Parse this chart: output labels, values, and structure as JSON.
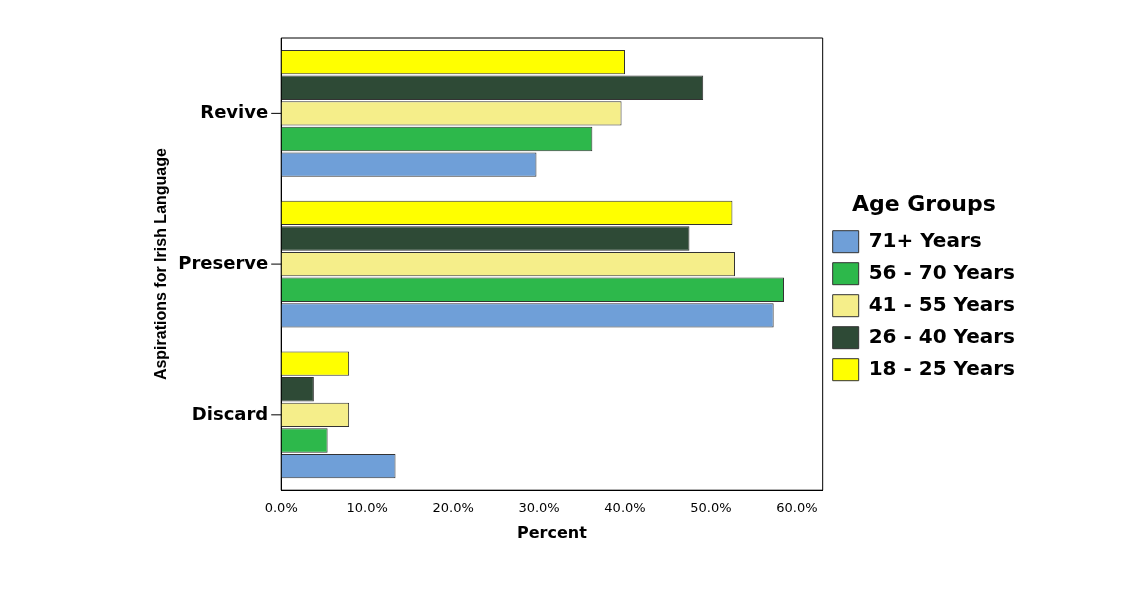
{
  "chart_data": {
    "type": "bar",
    "orientation": "horizontal",
    "xlabel": "Percent",
    "ylabel": "Aspirations for Irish Language",
    "legend_title": "Age Groups",
    "legend": "right",
    "grid": false,
    "categories": [
      "Revive",
      "Preserve",
      "Discard"
    ],
    "xlim": [
      0,
      63
    ],
    "xticks": [
      {
        "value": 0,
        "label": "0.0%"
      },
      {
        "value": 10,
        "label": "10.0%"
      },
      {
        "value": 20,
        "label": "20.0%"
      },
      {
        "value": 30,
        "label": "30.0%"
      },
      {
        "value": 40,
        "label": "40.0%"
      },
      {
        "value": 50,
        "label": "50.0%"
      },
      {
        "value": 60,
        "label": "60.0%"
      }
    ],
    "series": [
      {
        "name": "71+ Years",
        "color": "#6f9fd8",
        "values": [
          29.7,
          57.3,
          13.3
        ]
      },
      {
        "name": "56 - 70 Years",
        "color": "#2db84b",
        "values": [
          36.2,
          58.5,
          5.4
        ]
      },
      {
        "name": "41 - 55 Years",
        "color": "#f5ee8a",
        "values": [
          39.6,
          52.8,
          7.9
        ]
      },
      {
        "name": "26 - 40 Years",
        "color": "#2e4a36",
        "values": [
          49.1,
          47.5,
          3.8
        ]
      },
      {
        "name": "18 - 25 Years",
        "color": "#ffff00",
        "values": [
          40.0,
          52.5,
          7.9
        ]
      }
    ]
  }
}
